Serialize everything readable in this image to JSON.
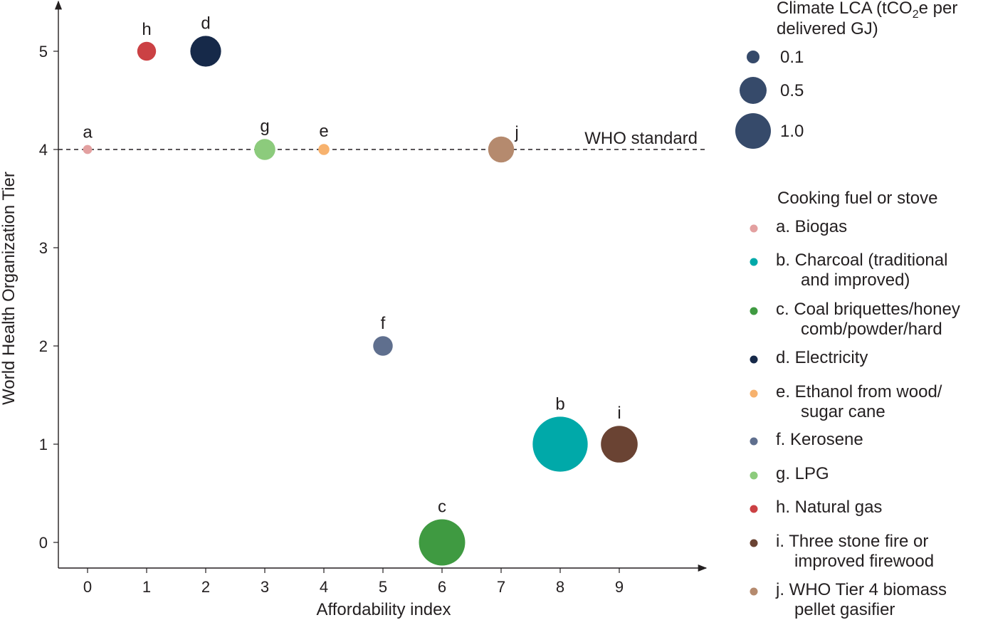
{
  "chart_data": {
    "type": "scatter",
    "xlabel": "Affordability index",
    "ylabel": "World Health Organization Tier",
    "xlim": [
      -0.5,
      10.5
    ],
    "ylim": [
      -0.27,
      5.5
    ],
    "xticks": [
      "0",
      "1",
      "2",
      "3",
      "4",
      "5",
      "6",
      "7",
      "8",
      "9"
    ],
    "yticks": [
      "0",
      "1",
      "2",
      "3",
      "4",
      "5"
    ],
    "reference_line": {
      "y": 4,
      "label": "WHO standard",
      "style": "dashed"
    },
    "size_legend": {
      "title_line1": "Climate LCA (tCO",
      "title_sub": "2",
      "title_line1_end": "e per",
      "title_line2": "delivered GJ)",
      "entries": [
        {
          "label": "0.1",
          "value": 0.1
        },
        {
          "label": "0.5",
          "value": 0.5
        },
        {
          "label": "1.0",
          "value": 1.0
        }
      ],
      "color": "#364a6a"
    },
    "color_legend": {
      "title": "Cooking fuel or stove",
      "entries": [
        {
          "lines": [
            "a. Biogas"
          ],
          "color": "#e3a0a0"
        },
        {
          "lines": [
            "b. Charcoal (traditional",
            "and improved)"
          ],
          "color": "#00a9a9"
        },
        {
          "lines": [
            "c. Coal briquettes/honey",
            "comb/powder/hard"
          ],
          "color": "#3f9a41"
        },
        {
          "lines": [
            "d. Electricity"
          ],
          "color": "#162949"
        },
        {
          "lines": [
            "e. Ethanol from wood/",
            "sugar cane"
          ],
          "color": "#f7b26e"
        },
        {
          "lines": [
            "f. Kerosene"
          ],
          "color": "#5f6f8e"
        },
        {
          "lines": [
            "g. LPG"
          ],
          "color": "#8ccb7c"
        },
        {
          "lines": [
            "h. Natural gas"
          ],
          "color": "#cb4144"
        },
        {
          "lines": [
            "i. Three stone fire or",
            "improved firewood"
          ],
          "color": "#6a4333"
        },
        {
          "lines": [
            "j. WHO Tier 4 biomass",
            "pellet gasifier"
          ],
          "color": "#b58a6e"
        }
      ]
    },
    "points": [
      {
        "label": "a",
        "x": 0,
        "y": 4,
        "lca": 0.01,
        "color": "#e3a0a0"
      },
      {
        "label": "b",
        "x": 8,
        "y": 1,
        "lca": 1.1,
        "color": "#00a9a9"
      },
      {
        "label": "c",
        "x": 6,
        "y": 0,
        "lca": 0.75,
        "color": "#3f9a41"
      },
      {
        "label": "d",
        "x": 2,
        "y": 5,
        "lca": 0.3,
        "color": "#162949"
      },
      {
        "label": "e",
        "x": 4,
        "y": 4,
        "lca": 0.02,
        "color": "#f7b26e"
      },
      {
        "label": "f",
        "x": 5,
        "y": 2,
        "lca": 0.1,
        "color": "#5f6f8e"
      },
      {
        "label": "g",
        "x": 3,
        "y": 4,
        "lca": 0.12,
        "color": "#8ccb7c"
      },
      {
        "label": "h",
        "x": 1,
        "y": 5,
        "lca": 0.09,
        "color": "#cb4144"
      },
      {
        "label": "i",
        "x": 9,
        "y": 1,
        "lca": 0.45,
        "color": "#6a4333"
      },
      {
        "label": "j",
        "x": 7,
        "y": 4,
        "lca": 0.2,
        "color": "#b58a6e"
      }
    ]
  }
}
